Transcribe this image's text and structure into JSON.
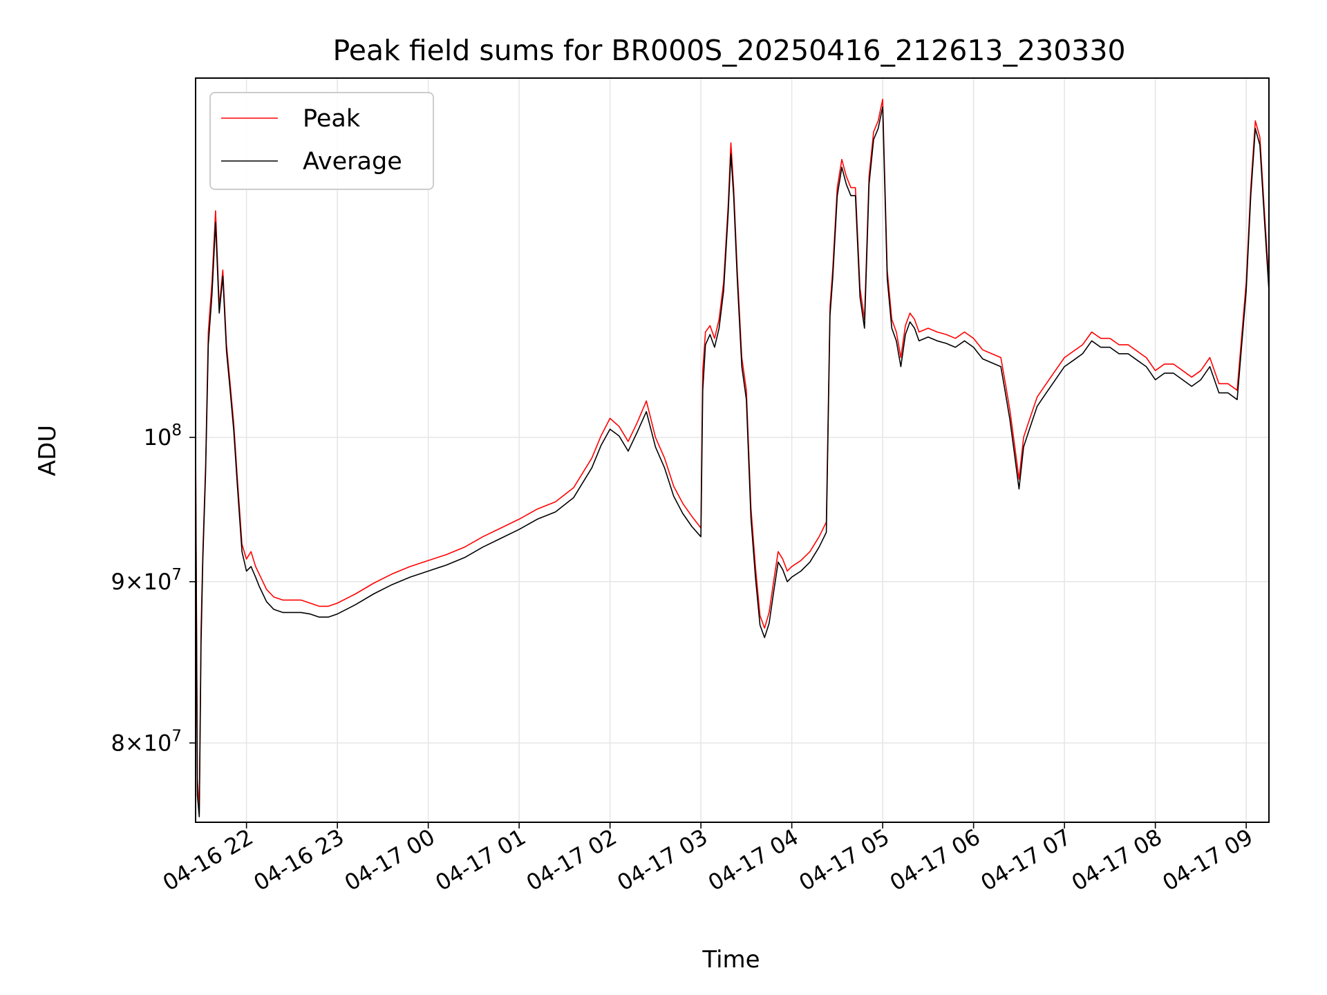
{
  "chart_data": {
    "type": "line",
    "title": "Peak field sums for BR000S_20250416_212613_230330",
    "xlabel": "Time",
    "ylabel": "ADU",
    "y_scale": "log",
    "grid": true,
    "legend_placement": "top-left",
    "x_unit": "hours since 2025-04-16 00:00",
    "xlim": [
      21.44,
      33.25
    ],
    "ylim": [
      75500000,
      130000000
    ],
    "x_ticks": [
      {
        "value": 22,
        "label": "04-16 22"
      },
      {
        "value": 23,
        "label": "04-16 23"
      },
      {
        "value": 24,
        "label": "04-17 00"
      },
      {
        "value": 25,
        "label": "04-17 01"
      },
      {
        "value": 26,
        "label": "04-17 02"
      },
      {
        "value": 27,
        "label": "04-17 03"
      },
      {
        "value": 28,
        "label": "04-17 04"
      },
      {
        "value": 29,
        "label": "04-17 05"
      },
      {
        "value": 30,
        "label": "04-17 06"
      },
      {
        "value": 31,
        "label": "04-17 07"
      },
      {
        "value": 32,
        "label": "04-17 08"
      },
      {
        "value": 33,
        "label": "04-17 09"
      }
    ],
    "y_ticks": [
      {
        "value": 80000000,
        "base": "8",
        "exp": "7"
      },
      {
        "value": 90000000,
        "base": "9",
        "exp": "7"
      },
      {
        "value": 100000000,
        "base": "",
        "exp": "8"
      }
    ],
    "series": [
      {
        "name": "Peak",
        "color": "#ff0000",
        "x": [
          21.44,
          21.46,
          21.48,
          21.5,
          21.52,
          21.55,
          21.58,
          21.62,
          21.66,
          21.7,
          21.74,
          21.78,
          21.82,
          21.86,
          21.9,
          21.95,
          22.0,
          22.05,
          22.1,
          22.14,
          22.18,
          22.22,
          22.3,
          22.4,
          22.5,
          22.6,
          22.7,
          22.8,
          22.9,
          23.0,
          23.2,
          23.4,
          23.6,
          23.8,
          24.0,
          24.2,
          24.4,
          24.6,
          24.8,
          25.0,
          25.2,
          25.4,
          25.6,
          25.8,
          25.9,
          26.0,
          26.1,
          26.2,
          26.3,
          26.4,
          26.5,
          26.6,
          26.7,
          26.8,
          26.9,
          27.0,
          27.02,
          27.05,
          27.1,
          27.15,
          27.2,
          27.25,
          27.3,
          27.33,
          27.36,
          27.4,
          27.45,
          27.5,
          27.55,
          27.6,
          27.65,
          27.7,
          27.75,
          27.8,
          27.85,
          27.9,
          27.95,
          28.0,
          28.1,
          28.2,
          28.3,
          28.38,
          28.42,
          28.45,
          28.5,
          28.55,
          28.6,
          28.65,
          28.7,
          28.75,
          28.8,
          28.85,
          28.9,
          28.95,
          29.0,
          29.05,
          29.1,
          29.15,
          29.2,
          29.25,
          29.3,
          29.35,
          29.4,
          29.5,
          29.6,
          29.7,
          29.8,
          29.9,
          30.0,
          30.1,
          30.2,
          30.3,
          30.35,
          30.4,
          30.45,
          30.5,
          30.55,
          30.6,
          30.65,
          30.7,
          30.8,
          30.9,
          31.0,
          31.1,
          31.2,
          31.3,
          31.4,
          31.5,
          31.6,
          31.7,
          31.8,
          31.9,
          32.0,
          32.1,
          32.2,
          32.3,
          32.4,
          32.5,
          32.6,
          32.7,
          32.8,
          32.9,
          33.0,
          33.05,
          33.1,
          33.15,
          33.2,
          33.25
        ],
        "y": [
          100000000,
          78000000,
          76000000,
          87000000,
          92000000,
          98000000,
          108000000,
          112000000,
          118000000,
          110000000,
          113000000,
          107000000,
          104000000,
          101000000,
          97000000,
          92500000,
          91500000,
          92000000,
          91000000,
          90500000,
          90000000,
          89500000,
          89000000,
          88800000,
          88800000,
          88800000,
          88600000,
          88400000,
          88400000,
          88600000,
          89200000,
          89900000,
          90500000,
          91000000,
          91400000,
          91800000,
          92300000,
          93000000,
          93600000,
          94200000,
          94900000,
          95400000,
          96400000,
          98500000,
          100100000,
          101400000,
          100800000,
          99700000,
          101100000,
          102700000,
          100000000,
          98500000,
          96500000,
          95300000,
          94400000,
          93600000,
          105000000,
          108000000,
          108500000,
          107500000,
          109000000,
          112000000,
          118500000,
          124000000,
          120000000,
          113000000,
          106000000,
          103500000,
          95000000,
          91000000,
          87800000,
          87000000,
          88000000,
          90000000,
          92000000,
          91500000,
          90700000,
          91000000,
          91400000,
          92000000,
          93000000,
          94000000,
          110000000,
          113000000,
          120000000,
          122500000,
          121000000,
          120000000,
          120000000,
          111500000,
          109000000,
          121000000,
          125000000,
          126000000,
          128000000,
          113000000,
          109000000,
          108000000,
          106000000,
          108500000,
          109500000,
          109000000,
          108000000,
          108300000,
          108000000,
          107800000,
          107500000,
          108000000,
          107500000,
          106600000,
          106300000,
          106000000,
          104000000,
          102000000,
          99500000,
          97000000,
          100000000,
          101000000,
          102000000,
          103000000,
          104000000,
          105000000,
          106000000,
          106500000,
          107000000,
          108000000,
          107500000,
          107500000,
          107000000,
          107000000,
          106500000,
          106000000,
          105000000,
          105500000,
          105500000,
          105000000,
          104500000,
          105000000,
          106000000,
          104000000,
          104000000,
          103500000,
          112000000,
          120000000,
          126000000,
          124500000,
          118000000,
          112000000
        ]
      },
      {
        "name": "Average",
        "color": "#000000",
        "x": [
          21.44,
          21.46,
          21.48,
          21.5,
          21.52,
          21.55,
          21.58,
          21.62,
          21.66,
          21.7,
          21.74,
          21.78,
          21.82,
          21.86,
          21.9,
          21.95,
          22.0,
          22.05,
          22.1,
          22.14,
          22.18,
          22.22,
          22.3,
          22.4,
          22.5,
          22.6,
          22.7,
          22.8,
          22.9,
          23.0,
          23.2,
          23.4,
          23.6,
          23.8,
          24.0,
          24.2,
          24.4,
          24.6,
          24.8,
          25.0,
          25.2,
          25.4,
          25.6,
          25.8,
          25.9,
          26.0,
          26.1,
          26.2,
          26.3,
          26.4,
          26.5,
          26.6,
          26.7,
          26.8,
          26.9,
          27.0,
          27.02,
          27.05,
          27.1,
          27.15,
          27.2,
          27.25,
          27.3,
          27.33,
          27.36,
          27.4,
          27.45,
          27.5,
          27.55,
          27.6,
          27.65,
          27.7,
          27.75,
          27.8,
          27.85,
          27.9,
          27.95,
          28.0,
          28.1,
          28.2,
          28.3,
          28.38,
          28.42,
          28.45,
          28.5,
          28.55,
          28.6,
          28.65,
          28.7,
          28.75,
          28.8,
          28.85,
          28.9,
          28.95,
          29.0,
          29.05,
          29.1,
          29.15,
          29.2,
          29.25,
          29.3,
          29.35,
          29.4,
          29.5,
          29.6,
          29.7,
          29.8,
          29.9,
          30.0,
          30.1,
          30.2,
          30.3,
          30.35,
          30.4,
          30.45,
          30.5,
          30.55,
          30.6,
          30.65,
          30.7,
          30.8,
          30.9,
          31.0,
          31.1,
          31.2,
          31.3,
          31.4,
          31.5,
          31.6,
          31.7,
          31.8,
          31.9,
          32.0,
          32.1,
          32.2,
          32.3,
          32.4,
          32.5,
          32.6,
          32.7,
          32.8,
          32.9,
          33.0,
          33.05,
          33.1,
          33.15,
          33.2,
          33.25
        ],
        "y": [
          99000000,
          77000000,
          75800000,
          86000000,
          91500000,
          97500000,
          107000000,
          111000000,
          117000000,
          109500000,
          112500000,
          106500000,
          103500000,
          100500000,
          96500000,
          92000000,
          90700000,
          91000000,
          90300000,
          89700000,
          89200000,
          88700000,
          88200000,
          88000000,
          88000000,
          88000000,
          87900000,
          87700000,
          87700000,
          87900000,
          88500000,
          89200000,
          89800000,
          90300000,
          90700000,
          91100000,
          91600000,
          92300000,
          92900000,
          93500000,
          94200000,
          94700000,
          95700000,
          97800000,
          99400000,
          100600000,
          100100000,
          99000000,
          100400000,
          101900000,
          99300000,
          97800000,
          95800000,
          94600000,
          93700000,
          93000000,
          103500000,
          107000000,
          107800000,
          106800000,
          108300000,
          111300000,
          117800000,
          123000000,
          119300000,
          112300000,
          105300000,
          102800000,
          94300000,
          90300000,
          87200000,
          86400000,
          87300000,
          89300000,
          91300000,
          90800000,
          90000000,
          90300000,
          90700000,
          91300000,
          92300000,
          93300000,
          109300000,
          112300000,
          119300000,
          121800000,
          120300000,
          119300000,
          119300000,
          110800000,
          108300000,
          120300000,
          124300000,
          125300000,
          127300000,
          112300000,
          108300000,
          107300000,
          105300000,
          107800000,
          108800000,
          108300000,
          107300000,
          107600000,
          107300000,
          107100000,
          106800000,
          107300000,
          106800000,
          105900000,
          105600000,
          105300000,
          103300000,
          101300000,
          98800000,
          96300000,
          99300000,
          100300000,
          101300000,
          102300000,
          103300000,
          104300000,
          105300000,
          105800000,
          106300000,
          107300000,
          106800000,
          106800000,
          106300000,
          106300000,
          105800000,
          105300000,
          104300000,
          104800000,
          104800000,
          104300000,
          103800000,
          104300000,
          105300000,
          103300000,
          103300000,
          102800000,
          111300000,
          119300000,
          125300000,
          123800000,
          117300000,
          111300000
        ]
      }
    ]
  }
}
